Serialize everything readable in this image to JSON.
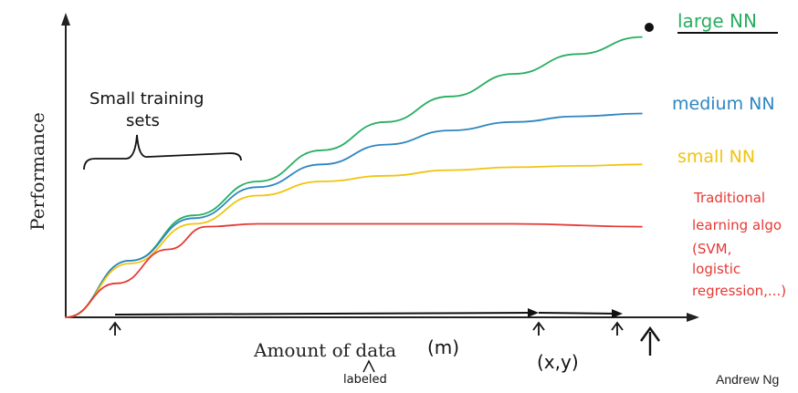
{
  "axes": {
    "y_label": "Performance",
    "x_label": "Amount of data",
    "x_symbol": "(m)",
    "x_note": "labeled",
    "pair_label": "(x,y)"
  },
  "annotation": {
    "line1": "Small training",
    "line2": "sets"
  },
  "credit": "Andrew Ng",
  "chart_data": {
    "type": "line",
    "title": "",
    "xlabel": "Amount of data",
    "ylabel": "Performance",
    "series": [
      {
        "name": "large NN",
        "color": "#27ae60",
        "points": [
          [
            0,
            0
          ],
          [
            1,
            2.0
          ],
          [
            2,
            3.6
          ],
          [
            3,
            4.8
          ],
          [
            4,
            5.9
          ],
          [
            5,
            6.9
          ],
          [
            6,
            7.8
          ],
          [
            7,
            8.6
          ],
          [
            8,
            9.3
          ],
          [
            9,
            9.9
          ]
        ]
      },
      {
        "name": "medium NN",
        "color": "#2e86c1",
        "points": [
          [
            0,
            0
          ],
          [
            1,
            2.0
          ],
          [
            2,
            3.5
          ],
          [
            3,
            4.6
          ],
          [
            4,
            5.4
          ],
          [
            5,
            6.1
          ],
          [
            6,
            6.6
          ],
          [
            7,
            6.9
          ],
          [
            8,
            7.1
          ],
          [
            9,
            7.2
          ]
        ]
      },
      {
        "name": "small NN",
        "color": "#f1c40f",
        "points": [
          [
            0,
            0
          ],
          [
            1,
            1.9
          ],
          [
            2,
            3.3
          ],
          [
            3,
            4.3
          ],
          [
            4,
            4.8
          ],
          [
            5,
            5.0
          ],
          [
            6,
            5.2
          ],
          [
            7,
            5.3
          ],
          [
            8,
            5.35
          ],
          [
            9,
            5.4
          ]
        ]
      },
      {
        "name": "Traditional learning algo (SVM, logistic regression,...)",
        "color": "#e53935",
        "points": [
          [
            0,
            0
          ],
          [
            0.8,
            1.2
          ],
          [
            1.6,
            2.4
          ],
          [
            2.2,
            3.2
          ],
          [
            3,
            3.3
          ],
          [
            5,
            3.3
          ],
          [
            7,
            3.3
          ],
          [
            9,
            3.2
          ]
        ]
      }
    ],
    "series_labels": [
      {
        "text": "large NN",
        "color": "#27ae60"
      },
      {
        "text": "medium NN",
        "color": "#2e86c1"
      },
      {
        "text": "small NN",
        "color": "#f1c40f"
      },
      {
        "lines": [
          "Traditional",
          "learning algo",
          "(SVM,",
          "logistic",
          "regression,...)"
        ],
        "color": "#e53935"
      }
    ],
    "xlim": [
      0,
      9.6
    ],
    "ylim": [
      0,
      10.5
    ],
    "grid": false
  }
}
